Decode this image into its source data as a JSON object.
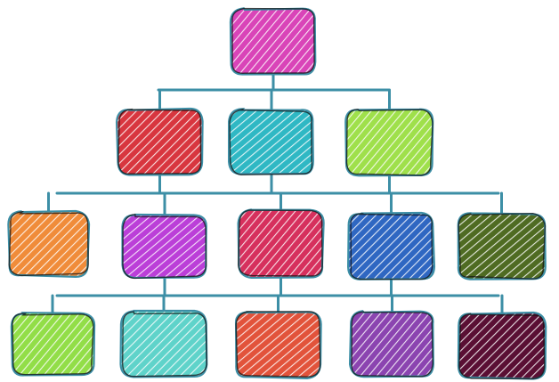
{
  "diagram": {
    "type": "hierarchy",
    "edges": [
      [
        "n0",
        "n1a"
      ],
      [
        "n0",
        "n1b"
      ],
      [
        "n0",
        "n1c"
      ],
      [
        "n1a",
        "n2a"
      ],
      [
        "n1a",
        "n2b"
      ],
      [
        "n1b",
        "n2c"
      ],
      [
        "n1c",
        "n2d"
      ],
      [
        "n1c",
        "n2e"
      ],
      [
        "n2b",
        "n3a"
      ],
      [
        "n2b",
        "n3b"
      ],
      [
        "n2c",
        "n3c"
      ],
      [
        "n2d",
        "n3d"
      ],
      [
        "n2d",
        "n3e"
      ]
    ],
    "nodes": [
      {
        "id": "n0",
        "level": 0,
        "color": "#d944b8",
        "hatch": "#ffffff"
      },
      {
        "id": "n1a",
        "level": 1,
        "color": "#d8363f",
        "hatch": "#ffffff"
      },
      {
        "id": "n1b",
        "level": 1,
        "color": "#2fb8c4",
        "hatch": "#ffffff"
      },
      {
        "id": "n1c",
        "level": 1,
        "color": "#9fe04b",
        "hatch": "#ffffff"
      },
      {
        "id": "n2a",
        "level": 2,
        "color": "#f08c3a",
        "hatch": "#ffffff"
      },
      {
        "id": "n2b",
        "level": 2,
        "color": "#bb3fd8",
        "hatch": "#ffffff"
      },
      {
        "id": "n2c",
        "level": 2,
        "color": "#d6305d",
        "hatch": "#ffffff"
      },
      {
        "id": "n2d",
        "level": 2,
        "color": "#2f67c2",
        "hatch": "#ffffff"
      },
      {
        "id": "n2e",
        "level": 2,
        "color": "#4f6b22",
        "hatch": "#ffffff"
      },
      {
        "id": "n3a",
        "level": 3,
        "color": "#92de48",
        "hatch": "#ffffff"
      },
      {
        "id": "n3b",
        "level": 3,
        "color": "#5fd3ca",
        "hatch": "#ffffff"
      },
      {
        "id": "n3c",
        "level": 3,
        "color": "#e2533b",
        "hatch": "#ffffff"
      },
      {
        "id": "n3d",
        "level": 3,
        "color": "#8b44b0",
        "hatch": "#ffffff"
      },
      {
        "id": "n3e",
        "level": 3,
        "color": "#5a0f34",
        "hatch": "#ffffff"
      }
    ]
  }
}
